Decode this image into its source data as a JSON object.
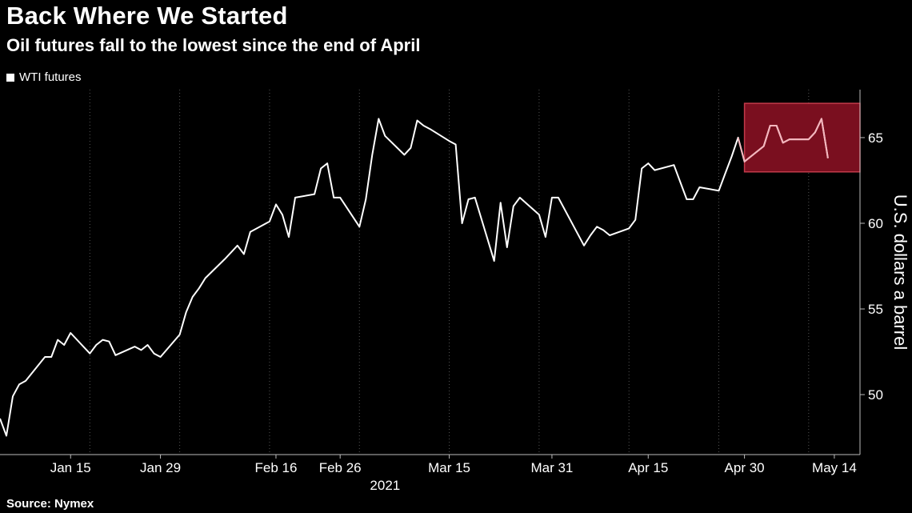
{
  "header": {
    "title": "Back Where We Started",
    "subtitle": "Oil futures fall to the lowest since the end of April"
  },
  "legend": {
    "label": "WTI futures"
  },
  "footer": {
    "source": "Source: Nymex"
  },
  "colors": {
    "background": "#000000",
    "line": "#ffffff",
    "highlight_fill": "#7a0f1f",
    "highlight_stroke": "#c23a4a",
    "highlight_line": "#f4b6bd",
    "grid": "#555555"
  },
  "chart_data": {
    "type": "line",
    "title": "Back Where We Started",
    "subtitle": "Oil futures fall to the lowest since the end of April",
    "ylabel": "U.S. dollars a barrel",
    "year_label": "2021",
    "ylim": [
      46.5,
      67.8
    ],
    "xlim": [
      "2021-01-04",
      "2021-05-18"
    ],
    "yticks": [
      50,
      55,
      60,
      65
    ],
    "xticks": [
      {
        "date": "2021-01-15",
        "label": "Jan 15"
      },
      {
        "date": "2021-01-29",
        "label": "Jan 29"
      },
      {
        "date": "2021-02-16",
        "label": "Feb 16"
      },
      {
        "date": "2021-02-26",
        "label": "Feb 26"
      },
      {
        "date": "2021-03-15",
        "label": "Mar 15"
      },
      {
        "date": "2021-03-31",
        "label": "Mar 31"
      },
      {
        "date": "2021-04-15",
        "label": "Apr 15"
      },
      {
        "date": "2021-04-30",
        "label": "Apr 30"
      },
      {
        "date": "2021-05-14",
        "label": "May 14"
      }
    ],
    "grid": "vertical dotted",
    "legend": "top-left",
    "highlight": {
      "x_start": "2021-04-30",
      "x_end": "2021-05-18",
      "y_start": 63.0,
      "y_end": 67.0
    },
    "series": [
      {
        "name": "WTI futures",
        "points": [
          [
            "2021-01-04",
            48.6
          ],
          [
            "2021-01-05",
            47.6
          ],
          [
            "2021-01-06",
            49.9
          ],
          [
            "2021-01-07",
            50.6
          ],
          [
            "2021-01-08",
            50.8
          ],
          [
            "2021-01-11",
            52.2
          ],
          [
            "2021-01-12",
            52.2
          ],
          [
            "2021-01-13",
            53.2
          ],
          [
            "2021-01-14",
            52.9
          ],
          [
            "2021-01-15",
            53.6
          ],
          [
            "2021-01-18",
            52.4
          ],
          [
            "2021-01-19",
            52.9
          ],
          [
            "2021-01-20",
            53.2
          ],
          [
            "2021-01-21",
            53.1
          ],
          [
            "2021-01-22",
            52.3
          ],
          [
            "2021-01-25",
            52.8
          ],
          [
            "2021-01-26",
            52.6
          ],
          [
            "2021-01-27",
            52.9
          ],
          [
            "2021-01-28",
            52.4
          ],
          [
            "2021-01-29",
            52.2
          ],
          [
            "2021-02-01",
            53.5
          ],
          [
            "2021-02-02",
            54.8
          ],
          [
            "2021-02-03",
            55.7
          ],
          [
            "2021-02-04",
            56.2
          ],
          [
            "2021-02-05",
            56.8
          ],
          [
            "2021-02-08",
            57.9
          ],
          [
            "2021-02-09",
            58.3
          ],
          [
            "2021-02-10",
            58.7
          ],
          [
            "2021-02-11",
            58.2
          ],
          [
            "2021-02-12",
            59.5
          ],
          [
            "2021-02-15",
            60.1
          ],
          [
            "2021-02-16",
            61.1
          ],
          [
            "2021-02-17",
            60.5
          ],
          [
            "2021-02-18",
            59.2
          ],
          [
            "2021-02-19",
            61.5
          ],
          [
            "2021-02-22",
            61.7
          ],
          [
            "2021-02-23",
            63.2
          ],
          [
            "2021-02-24",
            63.5
          ],
          [
            "2021-02-25",
            61.5
          ],
          [
            "2021-02-26",
            61.5
          ],
          [
            "2021-03-01",
            59.8
          ],
          [
            "2021-03-02",
            61.4
          ],
          [
            "2021-03-03",
            64.0
          ],
          [
            "2021-03-04",
            66.1
          ],
          [
            "2021-03-05",
            65.1
          ],
          [
            "2021-03-08",
            64.0
          ],
          [
            "2021-03-09",
            64.4
          ],
          [
            "2021-03-10",
            66.0
          ],
          [
            "2021-03-11",
            65.7
          ],
          [
            "2021-03-12",
            65.5
          ],
          [
            "2021-03-15",
            64.8
          ],
          [
            "2021-03-16",
            64.6
          ],
          [
            "2021-03-17",
            60.0
          ],
          [
            "2021-03-18",
            61.4
          ],
          [
            "2021-03-19",
            61.5
          ],
          [
            "2021-03-22",
            57.8
          ],
          [
            "2021-03-23",
            61.2
          ],
          [
            "2021-03-24",
            58.6
          ],
          [
            "2021-03-25",
            61.0
          ],
          [
            "2021-03-26",
            61.5
          ],
          [
            "2021-03-29",
            60.5
          ],
          [
            "2021-03-30",
            59.2
          ],
          [
            "2021-03-31",
            61.5
          ],
          [
            "2021-04-01",
            61.5
          ],
          [
            "2021-04-05",
            58.7
          ],
          [
            "2021-04-06",
            59.3
          ],
          [
            "2021-04-07",
            59.8
          ],
          [
            "2021-04-08",
            59.6
          ],
          [
            "2021-04-09",
            59.3
          ],
          [
            "2021-04-12",
            59.7
          ],
          [
            "2021-04-13",
            60.2
          ],
          [
            "2021-04-14",
            63.2
          ],
          [
            "2021-04-15",
            63.5
          ],
          [
            "2021-04-16",
            63.1
          ],
          [
            "2021-04-19",
            63.4
          ],
          [
            "2021-04-20",
            62.4
          ],
          [
            "2021-04-21",
            61.4
          ],
          [
            "2021-04-22",
            61.4
          ],
          [
            "2021-04-23",
            62.1
          ],
          [
            "2021-04-26",
            61.9
          ],
          [
            "2021-04-27",
            62.9
          ],
          [
            "2021-04-28",
            63.9
          ],
          [
            "2021-04-29",
            65.0
          ],
          [
            "2021-04-30",
            63.6
          ],
          [
            "2021-05-03",
            64.5
          ],
          [
            "2021-05-04",
            65.7
          ],
          [
            "2021-05-05",
            65.7
          ],
          [
            "2021-05-06",
            64.7
          ],
          [
            "2021-05-07",
            64.9
          ],
          [
            "2021-05-10",
            64.9
          ],
          [
            "2021-05-11",
            65.3
          ],
          [
            "2021-05-12",
            66.1
          ],
          [
            "2021-05-13",
            63.8
          ]
        ]
      }
    ]
  }
}
